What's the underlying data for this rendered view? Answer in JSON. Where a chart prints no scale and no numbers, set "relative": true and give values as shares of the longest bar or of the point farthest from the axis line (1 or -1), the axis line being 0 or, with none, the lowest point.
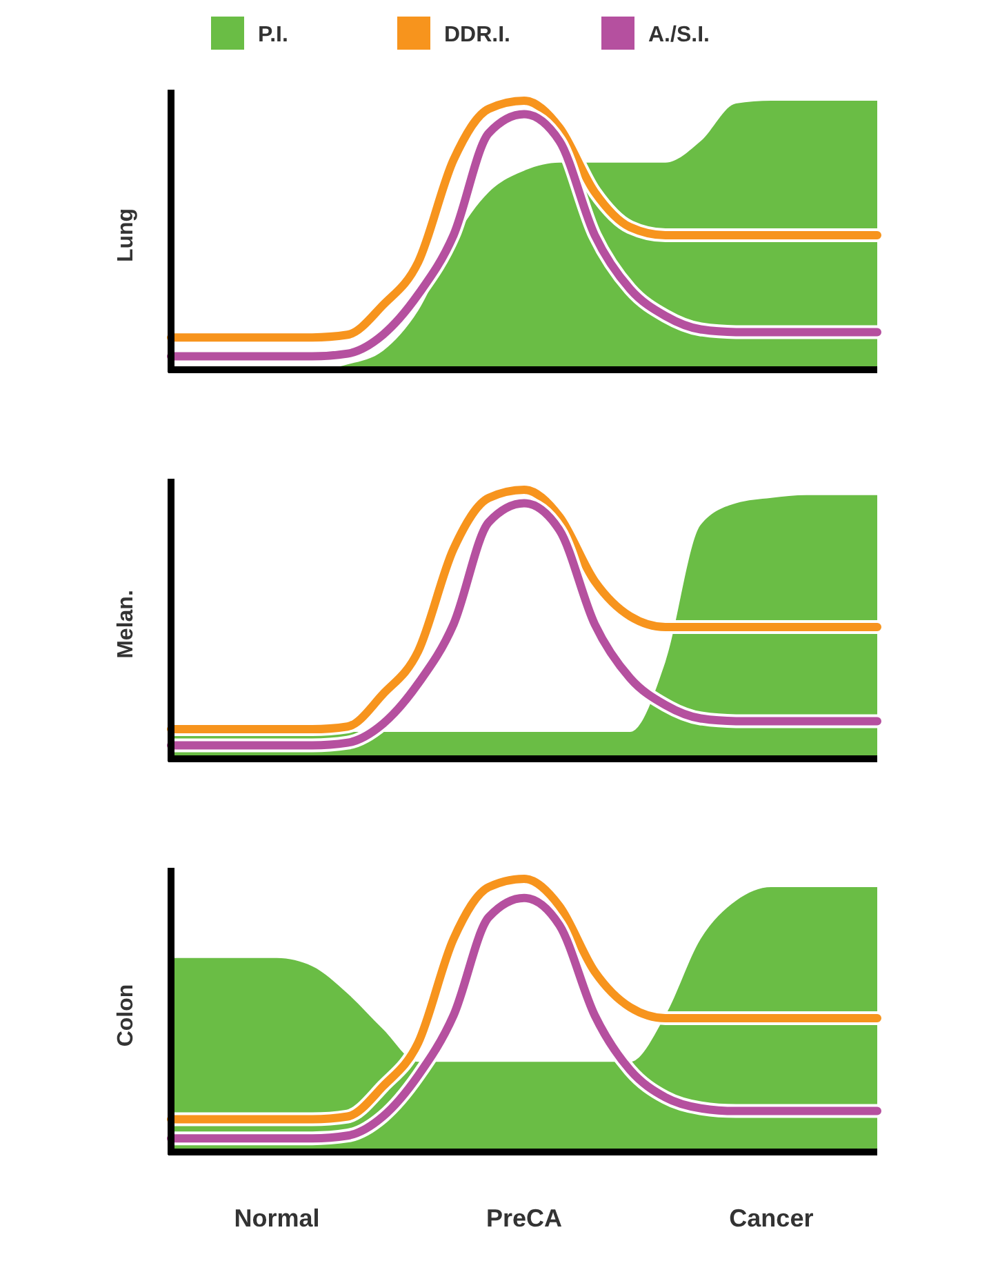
{
  "chart_data": [
    {
      "type": "line",
      "ylabel": "Lung",
      "relative": true,
      "tick_labels": false,
      "legend": "top",
      "categories": [
        null,
        null,
        null,
        null,
        null,
        null,
        null,
        null,
        null,
        null,
        null,
        null,
        null,
        null,
        null,
        null,
        null,
        null,
        null,
        null,
        null
      ],
      "series": [
        {
          "name": "P.I.",
          "type": "area",
          "color": "#6abd45",
          "values": [
            0,
            0,
            0,
            0,
            0,
            0.02,
            0.07,
            0.22,
            0.48,
            0.66,
            0.74,
            0.77,
            0.77,
            0.77,
            0.77,
            0.85,
            0.99,
            1,
            1,
            1,
            1
          ]
        },
        {
          "name": "DDR.I.",
          "type": "line",
          "color": "#f7941d",
          "values": [
            0.12,
            0.12,
            0.12,
            0.12,
            0.12,
            0.13,
            0.24,
            0.4,
            0.78,
            0.97,
            1,
            0.9,
            0.66,
            0.53,
            0.5,
            0.5,
            0.5,
            0.5,
            0.5,
            0.5,
            0.5
          ]
        },
        {
          "name": "A./S.I.",
          "type": "line",
          "color": "#b5509f",
          "values": [
            0.05,
            0.05,
            0.05,
            0.05,
            0.05,
            0.06,
            0.13,
            0.28,
            0.5,
            0.88,
            0.95,
            0.85,
            0.5,
            0.3,
            0.2,
            0.15,
            0.14,
            0.14,
            0.14,
            0.14,
            0.14
          ]
        }
      ]
    },
    {
      "type": "line",
      "ylabel": "Melan.",
      "relative": true,
      "tick_labels": false,
      "categories": [
        null,
        null,
        null,
        null,
        null,
        null,
        null,
        null,
        null,
        null,
        null,
        null,
        null,
        null,
        null,
        null,
        null,
        null,
        null,
        null,
        null
      ],
      "series": [
        {
          "type": "area",
          "color": "#6abd45",
          "values": [
            0.1,
            0.1,
            0.1,
            0.1,
            0.1,
            0.1,
            0.1,
            0.1,
            0.1,
            0.1,
            0.1,
            0.1,
            0.1,
            0.1,
            0.36,
            0.87,
            0.95,
            0.97,
            0.98,
            0.98,
            0.98
          ]
        },
        {
          "type": "line",
          "color": "#f7941d",
          "values": [
            0.11,
            0.11,
            0.11,
            0.11,
            0.11,
            0.12,
            0.24,
            0.4,
            0.78,
            0.97,
            1,
            0.9,
            0.66,
            0.53,
            0.49,
            0.49,
            0.49,
            0.49,
            0.49,
            0.49,
            0.49
          ]
        },
        {
          "type": "line",
          "color": "#b5509f",
          "values": [
            0.05,
            0.05,
            0.05,
            0.05,
            0.05,
            0.06,
            0.13,
            0.28,
            0.5,
            0.88,
            0.95,
            0.85,
            0.5,
            0.3,
            0.2,
            0.15,
            0.14,
            0.14,
            0.14,
            0.14,
            0.14
          ]
        }
      ]
    },
    {
      "type": "line",
      "ylabel": "Colon",
      "relative": true,
      "tick_labels": "x",
      "categories": [
        null,
        null,
        null,
        "Normal",
        null,
        null,
        null,
        null,
        null,
        null,
        "PreCA",
        null,
        null,
        null,
        null,
        null,
        null,
        "Cancer",
        null,
        null,
        null
      ],
      "series": [
        {
          "type": "area",
          "color": "#6abd45",
          "values": [
            0.71,
            0.71,
            0.71,
            0.71,
            0.68,
            0.58,
            0.45,
            0.33,
            0.33,
            0.33,
            0.33,
            0.33,
            0.33,
            0.33,
            0.5,
            0.78,
            0.92,
            0.97,
            0.97,
            0.97,
            0.97
          ]
        },
        {
          "type": "line",
          "color": "#f7941d",
          "values": [
            0.12,
            0.12,
            0.12,
            0.12,
            0.12,
            0.13,
            0.24,
            0.4,
            0.78,
            0.97,
            1,
            0.9,
            0.66,
            0.53,
            0.49,
            0.49,
            0.49,
            0.49,
            0.49,
            0.49,
            0.49
          ]
        },
        {
          "type": "line",
          "color": "#b5509f",
          "values": [
            0.05,
            0.05,
            0.05,
            0.05,
            0.05,
            0.06,
            0.13,
            0.28,
            0.5,
            0.86,
            0.93,
            0.83,
            0.5,
            0.3,
            0.2,
            0.16,
            0.15,
            0.15,
            0.15,
            0.15,
            0.15
          ]
        }
      ]
    }
  ]
}
